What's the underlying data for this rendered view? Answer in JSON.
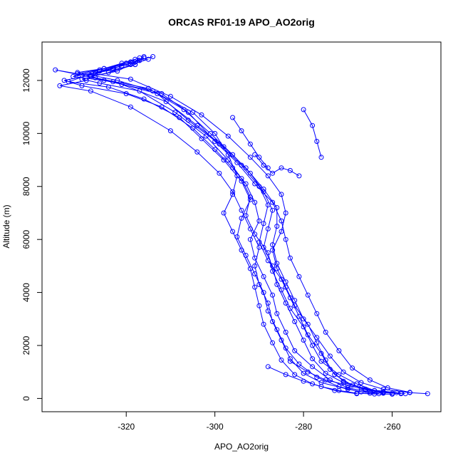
{
  "chart_data": {
    "type": "scatter",
    "title": "ORCAS RF01-19 APO_AO2orig",
    "xlabel": "APO_AO2orig",
    "ylabel": "Altitude (m)",
    "xlim": [
      -339,
      -249
    ],
    "ylim": [
      -500,
      13450
    ],
    "x_ticks": [
      -320,
      -300,
      -280,
      -260
    ],
    "y_ticks": [
      0,
      2000,
      4000,
      6000,
      8000,
      10000,
      12000
    ],
    "x_tick_labels": [
      "-320",
      "-300",
      "-280",
      "-260"
    ],
    "y_tick_labels": [
      "0",
      "2000",
      "4000",
      "6000",
      "8000",
      "10000",
      "12000"
    ],
    "grid": false,
    "legend": "none",
    "style": "points connected by lines (open circles)",
    "color": "#0000ff",
    "series": [
      {
        "profiles": [
          [
            [
              -318,
              12800
            ],
            [
              -322,
              12500
            ],
            [
              -328,
              12200
            ],
            [
              -334,
              12000
            ],
            [
              -330,
              11800
            ],
            [
              -320,
              11500
            ],
            [
              -312,
              11000
            ],
            [
              -305,
              10200
            ],
            [
              -300,
              9400
            ],
            [
              -296,
              8700
            ],
            [
              -293,
              8100
            ],
            [
              -291,
              7400
            ],
            [
              -290,
              6700
            ],
            [
              -292,
              6000
            ],
            [
              -291,
              5300
            ],
            [
              -289,
              4600
            ],
            [
              -287,
              3900
            ],
            [
              -286,
              3200
            ],
            [
              -284,
              2500
            ],
            [
              -282,
              1800
            ],
            [
              -278,
              1200
            ],
            [
              -274,
              700
            ],
            [
              -270,
              400
            ],
            [
              -265,
              250
            ],
            [
              -262,
              200
            ]
          ],
          [
            [
              -316,
              12850
            ],
            [
              -318,
              12600
            ],
            [
              -324,
              12300
            ],
            [
              -330,
              12050
            ],
            [
              -326,
              11900
            ],
            [
              -317,
              11600
            ],
            [
              -309,
              10800
            ],
            [
              -302,
              9900
            ],
            [
              -297,
              9000
            ],
            [
              -294,
              8300
            ],
            [
              -292,
              7600
            ],
            [
              -293,
              6900
            ],
            [
              -291,
              6200
            ],
            [
              -288,
              5500
            ],
            [
              -287,
              4800
            ],
            [
              -285,
              4100
            ],
            [
              -283,
              3400
            ],
            [
              -280,
              2700
            ],
            [
              -278,
              2000
            ],
            [
              -276,
              1400
            ],
            [
              -272,
              900
            ],
            [
              -268,
              550
            ],
            [
              -264,
              300
            ],
            [
              -260,
              200
            ]
          ],
          [
            [
              -314,
              12900
            ],
            [
              -320,
              12650
            ],
            [
              -326,
              12400
            ],
            [
              -332,
              12150
            ],
            [
              -323,
              11950
            ],
            [
              -313,
              11500
            ],
            [
              -306,
              10500
            ],
            [
              -299,
              9600
            ],
            [
              -294,
              8800
            ],
            [
              -290,
              8000
            ],
            [
              -288,
              7300
            ],
            [
              -289,
              6600
            ],
            [
              -290,
              5900
            ],
            [
              -288,
              5200
            ],
            [
              -285,
              4500
            ],
            [
              -283,
              3800
            ],
            [
              -281,
              3100
            ],
            [
              -279,
              2400
            ],
            [
              -276,
              1700
            ],
            [
              -274,
              1100
            ],
            [
              -271,
              650
            ],
            [
              -267,
              400
            ],
            [
              -262,
              250
            ],
            [
              -257,
              180
            ]
          ],
          [
            [
              -319,
              12700
            ],
            [
              -325,
              12450
            ],
            [
              -331,
              12250
            ],
            [
              -336,
              12400
            ],
            [
              -327,
              12100
            ],
            [
              -315,
              11700
            ],
            [
              -307,
              10900
            ],
            [
              -301,
              10000
            ],
            [
              -296,
              9200
            ],
            [
              -292,
              8500
            ],
            [
              -289,
              7800
            ],
            [
              -287,
              7100
            ],
            [
              -288,
              6400
            ],
            [
              -289,
              5700
            ],
            [
              -287,
              5000
            ],
            [
              -286,
              4300
            ],
            [
              -284,
              3600
            ],
            [
              -282,
              2900
            ],
            [
              -280,
              2200
            ],
            [
              -278,
              1500
            ],
            [
              -275,
              950
            ],
            [
              -271,
              600
            ],
            [
              -266,
              350
            ],
            [
              -259,
              220
            ]
          ],
          [
            [
              -317,
              12750
            ],
            [
              -321,
              12550
            ],
            [
              -327,
              12300
            ],
            [
              -333,
              11950
            ],
            [
              -324,
              11750
            ],
            [
              -316,
              11300
            ],
            [
              -308,
              10600
            ],
            [
              -303,
              9800
            ],
            [
              -298,
              9000
            ],
            [
              -294,
              8200
            ],
            [
              -292,
              7500
            ],
            [
              -294,
              6800
            ],
            [
              -295,
              6100
            ],
            [
              -293,
              5400
            ],
            [
              -291,
              4700
            ],
            [
              -289,
              4000
            ],
            [
              -288,
              3300
            ],
            [
              -286,
              2600
            ],
            [
              -284,
              1900
            ],
            [
              -281,
              1300
            ],
            [
              -277,
              800
            ],
            [
              -272,
              450
            ],
            [
              -267,
              250
            ],
            [
              -263,
              180
            ]
          ],
          [
            [
              -315,
              12800
            ],
            [
              -319,
              12600
            ],
            [
              -322,
              12350
            ],
            [
              -328,
              12150
            ],
            [
              -321,
              11850
            ],
            [
              -311,
              11200
            ],
            [
              -304,
              10300
            ],
            [
              -298,
              9500
            ],
            [
              -293,
              8700
            ],
            [
              -289,
              7900
            ],
            [
              -286,
              7200
            ],
            [
              -286,
              6500
            ],
            [
              -287,
              5800
            ],
            [
              -286,
              5100
            ],
            [
              -284,
              4400
            ],
            [
              -282,
              3700
            ],
            [
              -280,
              3000
            ],
            [
              -277,
              2300
            ],
            [
              -274,
              1600
            ],
            [
              -271,
              1000
            ],
            [
              -267,
              600
            ],
            [
              -262,
              350
            ],
            [
              -256,
              220
            ],
            [
              -252,
              180
            ]
          ],
          [
            [
              -320,
              12650
            ],
            [
              -326,
              12350
            ],
            [
              -329,
              12000
            ],
            [
              -335,
              11800
            ],
            [
              -328,
              11600
            ],
            [
              -319,
              11000
            ],
            [
              -310,
              10100
            ],
            [
              -304,
              9300
            ],
            [
              -299,
              8500
            ],
            [
              -296,
              7800
            ],
            [
              -294,
              7100
            ],
            [
              -292,
              6400
            ],
            [
              -290,
              5700
            ],
            [
              -291,
              5000
            ],
            [
              -290,
              4300
            ],
            [
              -288,
              3600
            ],
            [
              -287,
              2900
            ],
            [
              -285,
              2200
            ],
            [
              -283,
              1500
            ],
            [
              -280,
              950
            ],
            [
              -276,
              600
            ],
            [
              -270,
              350
            ],
            [
              -265,
              200
            ]
          ],
          [
            [
              -316,
              12900
            ],
            [
              -318,
              12700
            ],
            [
              -323,
              12450
            ],
            [
              -327,
              12250
            ],
            [
              -319,
              12050
            ],
            [
              -310,
              11400
            ],
            [
              -303,
              10700
            ],
            [
              -297,
              9900
            ],
            [
              -292,
              9100
            ],
            [
              -288,
              8400
            ],
            [
              -285,
              7700
            ],
            [
              -284,
              7000
            ],
            [
              -285,
              6300
            ],
            [
              -287,
              5600
            ],
            [
              -286,
              4900
            ],
            [
              -284,
              4200
            ],
            [
              -282,
              3500
            ],
            [
              -279,
              2800
            ],
            [
              -277,
              2100
            ],
            [
              -275,
              1450
            ],
            [
              -273,
              900
            ],
            [
              -269,
              500
            ],
            [
              -264,
              300
            ],
            [
              -258,
              200
            ]
          ],
          [
            [
              -318,
              12600
            ],
            [
              -323,
              12400
            ],
            [
              -330,
              12200
            ],
            [
              -325,
              12000
            ],
            [
              -314,
              11600
            ],
            [
              -305,
              10800
            ],
            [
              -300,
              10000
            ],
            [
              -297,
              9200
            ],
            [
              -295,
              8400
            ],
            [
              -296,
              7700
            ],
            [
              -298,
              7000
            ],
            [
              -296,
              6300
            ],
            [
              -294,
              5600
            ],
            [
              -292,
              4900
            ],
            [
              -291,
              4200
            ],
            [
              -290,
              3500
            ],
            [
              -289,
              2800
            ],
            [
              -287,
              2100
            ],
            [
              -285,
              1450
            ],
            [
              -282,
              900
            ],
            [
              -278,
              550
            ],
            [
              -273,
              300
            ],
            [
              -268,
              180
            ]
          ],
          [
            [
              -317,
              12850
            ],
            [
              -321,
              12650
            ],
            [
              -325,
              12450
            ],
            [
              -331,
              12300
            ],
            [
              -322,
              12000
            ],
            [
              -312,
              11500
            ],
            [
              -306,
              10800
            ],
            [
              -300,
              9700
            ],
            [
              -295,
              8900
            ],
            [
              -291,
              8100
            ],
            [
              -287,
              7400
            ],
            [
              -285,
              6700
            ],
            [
              -284,
              6000
            ],
            [
              -283,
              5300
            ],
            [
              -281,
              4600
            ],
            [
              -279,
              3900
            ],
            [
              -277,
              3200
            ],
            [
              -275,
              2500
            ],
            [
              -272,
              1800
            ],
            [
              -269,
              1150
            ],
            [
              -265,
              700
            ],
            [
              -261,
              400
            ],
            [
              -256,
              230
            ]
          ],
          [
            [
              -288,
              1200
            ],
            [
              -284,
              900
            ],
            [
              -280,
              650
            ],
            [
              -276,
              450
            ],
            [
              -272,
              300
            ],
            [
              -268,
              200
            ],
            [
              -264,
              170
            ],
            [
              -260,
              160
            ]
          ],
          [
            [
              -283,
              1400
            ],
            [
              -279,
              1000
            ],
            [
              -275,
              700
            ],
            [
              -270,
              500
            ],
            [
              -266,
              330
            ],
            [
              -262,
              220
            ],
            [
              -258,
              180
            ]
          ],
          [
            [
              -291,
              9200
            ],
            [
              -289,
              8800
            ],
            [
              -287,
              8500
            ],
            [
              -285,
              8700
            ],
            [
              -283,
              8600
            ],
            [
              -281,
              8400
            ]
          ],
          [
            [
              -280,
              10900
            ],
            [
              -278,
              10300
            ],
            [
              -277,
              9700
            ],
            [
              -276,
              9100
            ]
          ],
          [
            [
              -296,
              10600
            ],
            [
              -294,
              10100
            ],
            [
              -292,
              9600
            ],
            [
              -290,
              9100
            ],
            [
              -288,
              8700
            ]
          ]
        ]
      }
    ]
  }
}
